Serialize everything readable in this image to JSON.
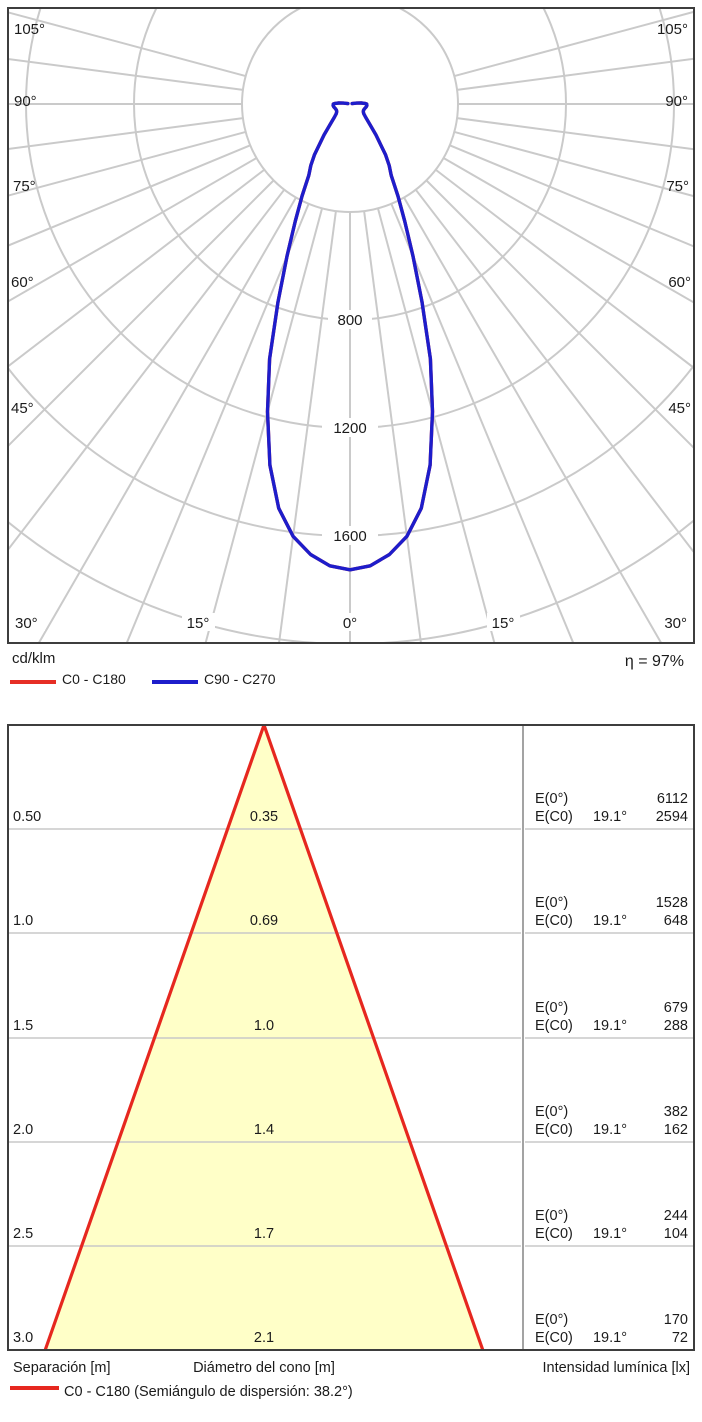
{
  "polar": {
    "unit": "cd/klm",
    "efficiency": "η = 97%",
    "legend": {
      "c0": "C0 - C180",
      "c90": "C90 - C270"
    },
    "ring_labels": [
      "800",
      "1200",
      "1600"
    ],
    "angles_left": [
      "105°",
      "90°",
      "75°",
      "60°",
      "45°",
      "30°"
    ],
    "angles_right": [
      "105°",
      "90°",
      "75°",
      "60°",
      "45°",
      "30°"
    ],
    "angles_bottom": [
      "15°",
      "0°",
      "15°"
    ],
    "colors": {
      "c0": "#e62e25",
      "c90": "#1d1dcb",
      "grid": "#cacaca",
      "border": "#3d3d3d"
    }
  },
  "cone": {
    "e_labels": {
      "e0": "E(0°)",
      "ec0": "E(C0)"
    },
    "rows": [
      {
        "separation": "0.50",
        "diameter": "0.35",
        "angle": "19.1°",
        "e0": "6112",
        "ec0": "2594"
      },
      {
        "separation": "1.0",
        "diameter": "0.69",
        "angle": "19.1°",
        "e0": "1528",
        "ec0": "648"
      },
      {
        "separation": "1.5",
        "diameter": "1.0",
        "angle": "19.1°",
        "e0": "679",
        "ec0": "288"
      },
      {
        "separation": "2.0",
        "diameter": "1.4",
        "angle": "19.1°",
        "e0": "382",
        "ec0": "162"
      },
      {
        "separation": "2.5",
        "diameter": "1.7",
        "angle": "19.1°",
        "e0": "244",
        "ec0": "104"
      },
      {
        "separation": "3.0",
        "diameter": "2.1",
        "angle": "19.1°",
        "e0": "170",
        "ec0": "72"
      }
    ],
    "footer": {
      "separation": "Separación [m]",
      "diameter": "Diámetro del cono [m]",
      "intensity": "Intensidad lumínica [lx]"
    },
    "legend": "C0 - C180 (Semiángulo de dispersión: 38.2°)",
    "colors": {
      "cone_fill": "#ffffc8",
      "edge": "#e6271f"
    }
  },
  "chart_data": [
    {
      "type": "line",
      "subtype": "polar_luminous_intensity_distribution",
      "unit": "cd/klm",
      "efficiency_eta_percent": 97,
      "radial_ticks": [
        400,
        800,
        1200,
        1600,
        2000
      ],
      "labeled_radial_ticks": [
        800,
        1200,
        1600
      ],
      "angle_tick_labels_deg": [
        0,
        15,
        30,
        45,
        60,
        75,
        90,
        105
      ],
      "angle_gridline_step_deg": 7.5,
      "gamma_deg": [
        0,
        2.5,
        5,
        7.5,
        10,
        12.5,
        15,
        17.5,
        20,
        22.5,
        25,
        27.5,
        30,
        32.5,
        35,
        40,
        45,
        50,
        55,
        60,
        65,
        70,
        75,
        80,
        85,
        90,
        92.5,
        95,
        97.5,
        100
      ],
      "series": [
        {
          "name": "C0 - C180",
          "color": "#e62e25",
          "values_cd_per_klm": [
            1725,
            1712,
            1675,
            1615,
            1520,
            1370,
            1180,
            990,
            780,
            610,
            480,
            385,
            305,
            270,
            230,
            150,
            100,
            75,
            62,
            57,
            55,
            56,
            58,
            61,
            63,
            62,
            55,
            42,
            25,
            8
          ],
          "note": "estimated; coincides with C90 - C270 curve and is hidden beneath it"
        },
        {
          "name": "C90 - C270",
          "color": "#1d1dcb",
          "values_cd_per_klm": [
            1725,
            1712,
            1675,
            1615,
            1520,
            1370,
            1180,
            990,
            780,
            610,
            480,
            385,
            305,
            270,
            230,
            150,
            100,
            75,
            62,
            57,
            55,
            56,
            58,
            61,
            63,
            62,
            55,
            42,
            25,
            8
          ],
          "note": "estimated from plot; peak ≈1725 cd/klm at 0°, half peak at 19.1°"
        }
      ]
    },
    {
      "type": "cone_diagram",
      "distances_m": [
        0.5,
        1.0,
        1.5,
        2.0,
        2.5,
        3.0
      ],
      "cone_diameters_m": [
        0.35,
        0.69,
        1.0,
        1.4,
        1.7,
        2.1
      ],
      "E0_lux": [
        6112,
        1528,
        679,
        382,
        244,
        170
      ],
      "EC0_lux": [
        2594,
        648,
        288,
        162,
        104,
        72
      ],
      "half_angle_deg": 19.1,
      "dispersion_semiangle_deg": 38.2,
      "xlabel": "Diámetro del cono [m]",
      "ylabel": "Separación [m]",
      "value_label": "Intensidad lumínica [lx]"
    }
  ]
}
